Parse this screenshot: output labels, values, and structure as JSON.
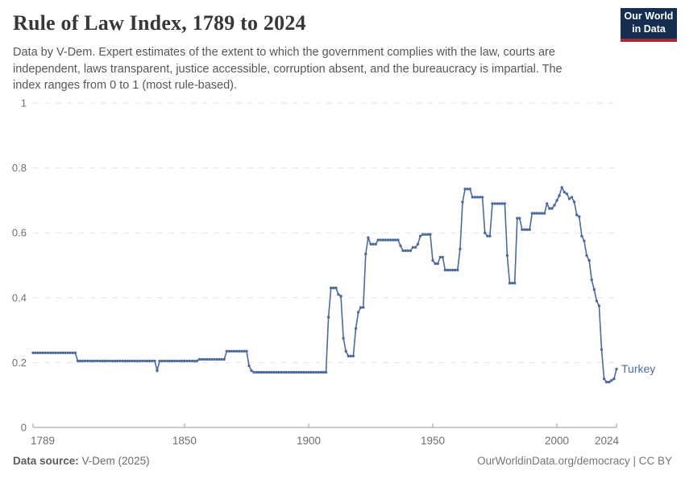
{
  "header": {
    "title": "Rule of Law Index, 1789 to 2024",
    "subtitle": "Data by V-Dem. Expert estimates of the extent to which the government complies with the law, courts are independent, laws transparent, justice accessible, corruption absent, and the bureaucracy is impartial. The index ranges from 0 to 1 (most rule-based).",
    "logo": {
      "line1": "Our World",
      "line2": "in Data",
      "bg_color": "#152d4f",
      "stripe_color": "#a52c36"
    }
  },
  "chart_data": {
    "type": "line",
    "title": "Rule of Law Index, 1789 to 2024",
    "entity_label": "Turkey",
    "xlabel": "",
    "ylabel": "",
    "xlim": [
      1789,
      2024
    ],
    "ylim": [
      0,
      1
    ],
    "x_ticks": [
      1789,
      1850,
      1900,
      1950,
      2000,
      2024
    ],
    "y_ticks": [
      0,
      0.2,
      0.4,
      0.6,
      0.8,
      1
    ],
    "grid": "horizontal dashed gridlines at y ticks",
    "legend_position": "end-of-line label",
    "line_color": "#4c6a9c",
    "series": [
      {
        "name": "Turkey",
        "values_by_year_runs": [
          [
            1789,
            1806,
            0.23
          ],
          [
            1807,
            1838,
            0.205
          ],
          [
            1839,
            1839,
            0.175
          ],
          [
            1840,
            1855,
            0.205
          ],
          [
            1856,
            1866,
            0.21
          ],
          [
            1867,
            1875,
            0.235
          ],
          [
            1876,
            1876,
            0.19
          ],
          [
            1877,
            1877,
            0.175
          ],
          [
            1878,
            1907,
            0.17
          ],
          [
            1908,
            1908,
            0.34
          ],
          [
            1909,
            1911,
            0.43
          ],
          [
            1912,
            1912,
            0.41
          ],
          [
            1913,
            1913,
            0.405
          ],
          [
            1914,
            1914,
            0.275
          ],
          [
            1915,
            1915,
            0.235
          ],
          [
            1916,
            1918,
            0.22
          ],
          [
            1919,
            1919,
            0.305
          ],
          [
            1920,
            1920,
            0.355
          ],
          [
            1921,
            1922,
            0.37
          ],
          [
            1923,
            1923,
            0.535
          ],
          [
            1924,
            1924,
            0.585
          ],
          [
            1925,
            1927,
            0.565
          ],
          [
            1928,
            1936,
            0.578
          ],
          [
            1937,
            1937,
            0.56
          ],
          [
            1938,
            1941,
            0.545
          ],
          [
            1942,
            1943,
            0.555
          ],
          [
            1944,
            1944,
            0.565
          ],
          [
            1945,
            1945,
            0.59
          ],
          [
            1946,
            1949,
            0.595
          ],
          [
            1950,
            1950,
            0.515
          ],
          [
            1951,
            1952,
            0.505
          ],
          [
            1953,
            1954,
            0.525
          ],
          [
            1955,
            1960,
            0.485
          ],
          [
            1961,
            1961,
            0.55
          ],
          [
            1962,
            1962,
            0.695
          ],
          [
            1963,
            1965,
            0.735
          ],
          [
            1966,
            1970,
            0.71
          ],
          [
            1971,
            1971,
            0.6
          ],
          [
            1972,
            1973,
            0.59
          ],
          [
            1974,
            1979,
            0.69
          ],
          [
            1980,
            1980,
            0.53
          ],
          [
            1981,
            1983,
            0.445
          ],
          [
            1984,
            1985,
            0.645
          ],
          [
            1986,
            1989,
            0.61
          ],
          [
            1990,
            1995,
            0.66
          ],
          [
            1996,
            1996,
            0.69
          ],
          [
            1997,
            1998,
            0.675
          ],
          [
            1999,
            1999,
            0.685
          ],
          [
            2000,
            2000,
            0.7
          ],
          [
            2001,
            2001,
            0.715
          ],
          [
            2002,
            2002,
            0.74
          ],
          [
            2003,
            2003,
            0.725
          ],
          [
            2004,
            2004,
            0.72
          ],
          [
            2005,
            2005,
            0.705
          ],
          [
            2006,
            2006,
            0.71
          ],
          [
            2007,
            2007,
            0.695
          ],
          [
            2008,
            2008,
            0.655
          ],
          [
            2009,
            2009,
            0.65
          ],
          [
            2010,
            2010,
            0.59
          ],
          [
            2011,
            2011,
            0.575
          ],
          [
            2012,
            2012,
            0.53
          ],
          [
            2013,
            2013,
            0.515
          ],
          [
            2014,
            2014,
            0.455
          ],
          [
            2015,
            2015,
            0.425
          ],
          [
            2016,
            2016,
            0.39
          ],
          [
            2017,
            2017,
            0.375
          ],
          [
            2018,
            2018,
            0.24
          ],
          [
            2019,
            2019,
            0.15
          ],
          [
            2020,
            2021,
            0.14
          ],
          [
            2022,
            2022,
            0.145
          ],
          [
            2023,
            2023,
            0.15
          ],
          [
            2024,
            2024,
            0.18
          ]
        ]
      }
    ]
  },
  "footer": {
    "source_label": "Data source:",
    "source_value": "V-Dem (2025)",
    "right_text": "OurWorldinData.org/democracy | CC BY"
  }
}
